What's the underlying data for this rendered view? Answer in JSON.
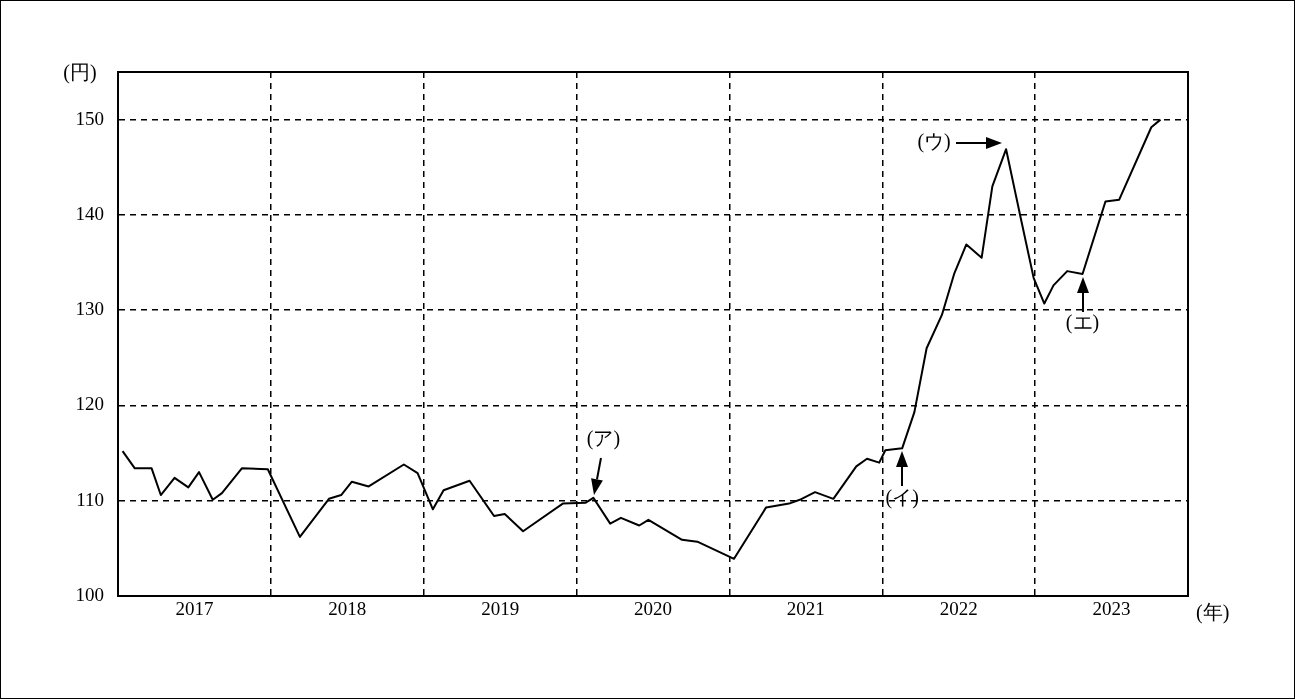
{
  "chart_data": {
    "type": "line",
    "xlabel": "(年)",
    "ylabel": "(円)",
    "xlim": [
      2017,
      2024
    ],
    "xticks": [
      {
        "value": 2017.5,
        "label": "2017"
      },
      {
        "value": 2018,
        "label": null
      },
      {
        "value": 2018.5,
        "label": "2018"
      },
      {
        "value": 2019,
        "label": null
      },
      {
        "value": 2019.5,
        "label": "2019"
      },
      {
        "value": 2020,
        "label": null
      },
      {
        "value": 2020.5,
        "label": "2020"
      },
      {
        "value": 2021,
        "label": null
      },
      {
        "value": 2021.5,
        "label": "2021"
      },
      {
        "value": 2022,
        "label": null
      },
      {
        "value": 2022.5,
        "label": "2022"
      },
      {
        "value": 2023,
        "label": null
      },
      {
        "value": 2023.5,
        "label": "2023"
      }
    ],
    "ylim": [
      100,
      155
    ],
    "yticks": [
      100,
      110,
      120,
      130,
      140,
      150
    ],
    "grid": true,
    "legend": false,
    "marker": "none",
    "line_style": "solid",
    "x": [
      2017.03,
      2017.11,
      2017.22,
      2017.28,
      2017.37,
      2017.46,
      2017.53,
      2017.62,
      2017.68,
      2017.81,
      2017.98,
      2018.19,
      2018.38,
      2018.46,
      2018.53,
      2018.64,
      2018.87,
      2018.96,
      2019.06,
      2019.13,
      2019.3,
      2019.46,
      2019.53,
      2019.65,
      2019.91,
      2020.06,
      2020.11,
      2020.22,
      2020.29,
      2020.41,
      2020.47,
      2020.69,
      2020.79,
      2021.03,
      2021.24,
      2021.39,
      2021.46,
      2021.56,
      2021.68,
      2021.83,
      2021.9,
      2021.98,
      2022.02,
      2022.13,
      2022.21,
      2022.29,
      2022.39,
      2022.47,
      2022.55,
      2022.65,
      2022.72,
      2022.81,
      2022.9,
      2022.99,
      2023.06,
      2023.12,
      2023.21,
      2023.31,
      2023.46,
      2023.55,
      2023.76,
      2023.82
    ],
    "series": [
      {
        "color": "#000000",
        "values": [
          115.2,
          113.4,
          113.4,
          110.6,
          112.4,
          111.4,
          113.0,
          110.1,
          110.8,
          113.4,
          113.3,
          106.2,
          110.2,
          110.6,
          112.0,
          111.5,
          113.8,
          112.9,
          109.1,
          111.1,
          112.1,
          108.4,
          108.6,
          106.8,
          109.7,
          109.8,
          110.3,
          107.6,
          108.2,
          107.4,
          108.0,
          105.9,
          105.7,
          103.9,
          109.3,
          109.7,
          110.1,
          110.9,
          110.2,
          113.6,
          114.4,
          114.0,
          115.3,
          115.5,
          119.3,
          126.0,
          129.5,
          133.8,
          136.9,
          135.5,
          143.0,
          146.9,
          140.1,
          133.4,
          130.7,
          132.6,
          134.1,
          133.8,
          141.4,
          141.6,
          149.2,
          150.0
        ]
      }
    ],
    "annotations": [
      {
        "text": "(ア)",
        "x": 2020.11,
        "y": 110.3
      },
      {
        "text": "(イ)",
        "x": 2022.13,
        "y": 115.5
      },
      {
        "text": "(ウ)",
        "x": 2022.81,
        "y": 146.9
      },
      {
        "text": "(エ)",
        "x": 2023.31,
        "y": 133.8
      }
    ]
  }
}
